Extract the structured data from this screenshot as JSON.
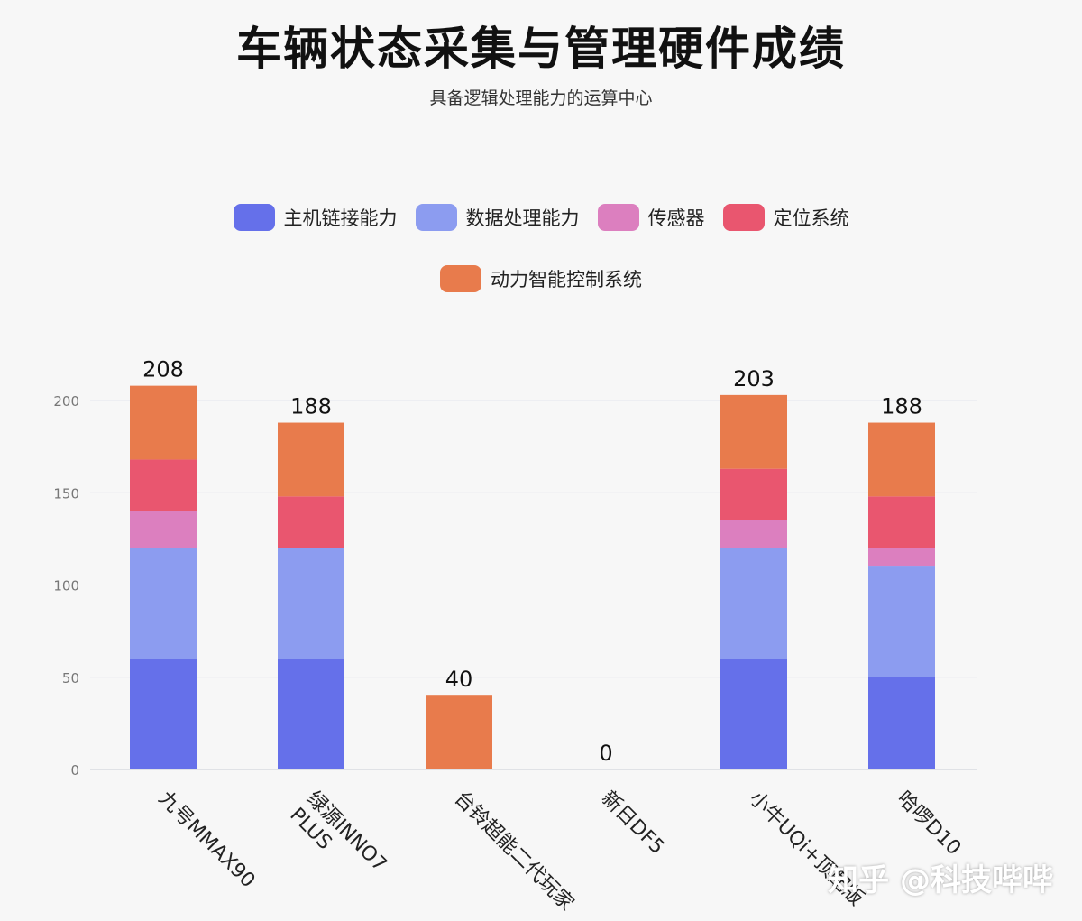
{
  "title": "车辆状态采集与管理硬件成绩",
  "subtitle": "具备逻辑处理能力的运算中心",
  "watermark": "知乎 @科技哔哔",
  "legend": [
    {
      "name": "主机链接能力",
      "color": "#6570ea"
    },
    {
      "name": "数据处理能力",
      "color": "#8c9cf0"
    },
    {
      "name": "传感器",
      "color": "#dc7fbf"
    },
    {
      "name": "定位系统",
      "color": "#e9566f"
    },
    {
      "name": "动力智能控制系统",
      "color": "#e87b4c"
    }
  ],
  "chart_data": {
    "type": "bar",
    "stacked": true,
    "title": "车辆状态采集与管理硬件成绩",
    "subtitle": "具备逻辑处理能力的运算中心",
    "categories": [
      "九号MMAX90",
      "绿源INNO7 PLUS",
      "台铃超能二代玩家",
      "新日DF5",
      "小牛UQi+顶配版",
      "哈啰D10"
    ],
    "series": [
      {
        "name": "主机链接能力",
        "color": "#6570ea",
        "values": [
          60,
          60,
          0,
          0,
          60,
          50
        ]
      },
      {
        "name": "数据处理能力",
        "color": "#8c9cf0",
        "values": [
          60,
          60,
          0,
          0,
          60,
          60
        ]
      },
      {
        "name": "传感器",
        "color": "#dc7fbf",
        "values": [
          20,
          0,
          0,
          0,
          15,
          10
        ]
      },
      {
        "name": "定位系统",
        "color": "#e9566f",
        "values": [
          28,
          28,
          0,
          0,
          28,
          28
        ]
      },
      {
        "name": "动力智能控制系统",
        "color": "#e87b4c",
        "values": [
          40,
          40,
          40,
          0,
          40,
          40
        ]
      }
    ],
    "totals": [
      208,
      188,
      40,
      0,
      203,
      188
    ],
    "y_ticks": [
      0,
      50,
      100,
      150,
      200
    ],
    "ylim": [
      0,
      220
    ],
    "grid": true,
    "legend_position": "top"
  }
}
